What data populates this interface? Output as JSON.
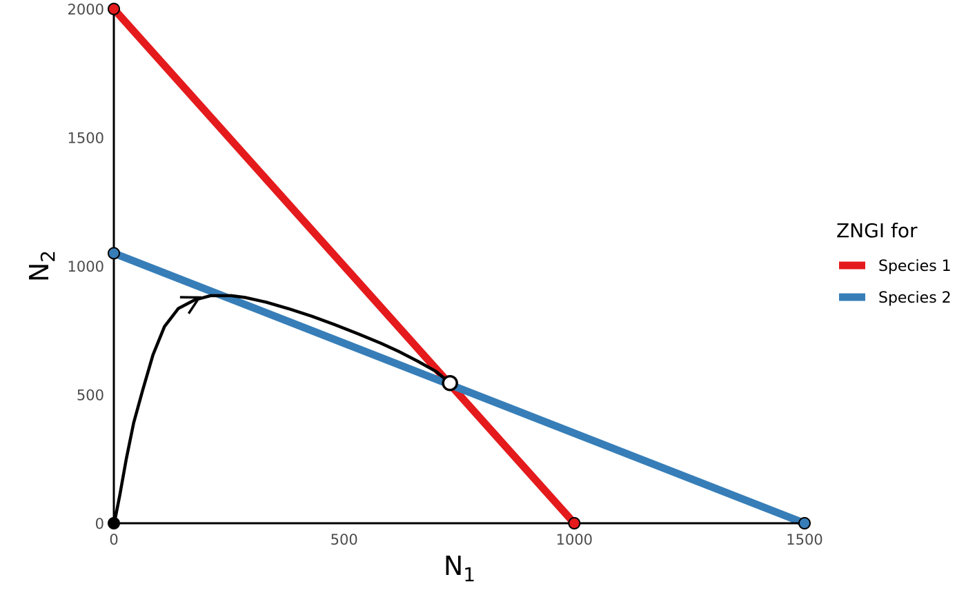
{
  "chart_data": {
    "type": "line",
    "xlabel": {
      "base": "N",
      "sub": "1"
    },
    "ylabel": {
      "base": "N",
      "sub": "2"
    },
    "xlim": [
      0,
      1500
    ],
    "ylim": [
      0,
      2000
    ],
    "x_ticks": [
      0,
      500,
      1000,
      1500
    ],
    "y_ticks": [
      0,
      500,
      1000,
      1500,
      2000
    ],
    "grid": false,
    "legend": {
      "title": "ZNGI for",
      "position": "right",
      "items": [
        "Species 1",
        "Species 2"
      ]
    },
    "series": [
      {
        "name": "Species 1",
        "color": "#E41A1C",
        "x": [
          0,
          1000
        ],
        "y": [
          2000,
          0
        ]
      },
      {
        "name": "Species 2",
        "color": "#377EB8",
        "x": [
          0,
          1500
        ],
        "y": [
          1050,
          0
        ]
      }
    ],
    "trajectory": {
      "color": "#000000",
      "x": [
        2,
        13,
        27,
        43,
        63,
        85,
        110,
        140,
        175,
        210,
        255,
        285,
        330,
        380,
        430,
        480,
        530,
        580,
        620,
        660,
        700,
        730
      ],
      "y": [
        10,
        110,
        250,
        390,
        520,
        655,
        765,
        835,
        868,
        885,
        885,
        878,
        860,
        834,
        805,
        772,
        737,
        700,
        667,
        630,
        590,
        545
      ]
    },
    "arrow_at_index": 8,
    "equilibrium": {
      "x": 730,
      "y": 545
    },
    "intercept_points": [
      {
        "x": 0,
        "y": 2000,
        "color": "#E41A1C"
      },
      {
        "x": 1000,
        "y": 0,
        "color": "#E41A1C"
      },
      {
        "x": 0,
        "y": 1050,
        "color": "#377EB8"
      },
      {
        "x": 1500,
        "y": 0,
        "color": "#377EB8"
      },
      {
        "x": 0,
        "y": 0,
        "color": "#000000"
      }
    ]
  }
}
